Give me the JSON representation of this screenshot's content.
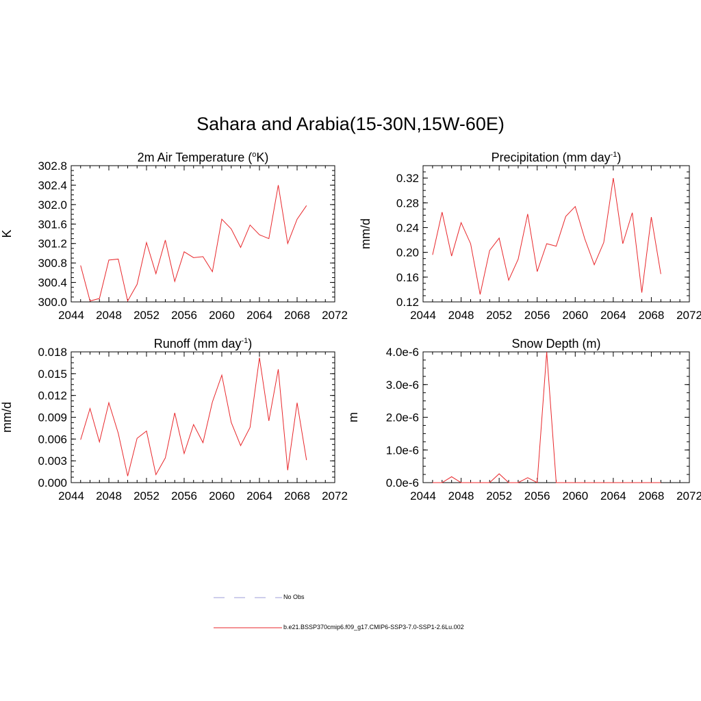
{
  "title": "Sahara and Arabia(15-30N,15W-60E)",
  "legend": {
    "items": [
      {
        "label": "No Obs",
        "color": "#9c9cd8",
        "style": "dashed"
      },
      {
        "label": "b.e21.BSSP370cmip6.f09_g17.CMIP6-SSP3-7.0-SSP1-2.6Lu.002",
        "color": "#e8262a",
        "style": "solid"
      }
    ]
  },
  "chart_data": [
    {
      "type": "line",
      "title": "2m Air Temperature (",
      "title_sup": "o",
      "title_after": "K)",
      "ylabel": "K",
      "xlabel": "",
      "xlim": [
        2044,
        2072
      ],
      "ylim": [
        300.0,
        302.8
      ],
      "xticks": [
        "2044",
        "2048",
        "2052",
        "2056",
        "2060",
        "2064",
        "2068",
        "2072"
      ],
      "yticks": [
        "300.0",
        "300.4",
        "300.8",
        "301.2",
        "301.6",
        "302.0",
        "302.4",
        "302.8"
      ],
      "ytick_values": [
        300.0,
        300.4,
        300.8,
        301.2,
        301.6,
        302.0,
        302.4,
        302.8
      ],
      "grid": false,
      "series": [
        {
          "color": "#e8262a",
          "x": [
            2045,
            2046,
            2047,
            2048,
            2049,
            2050,
            2051,
            2052,
            2053,
            2054,
            2055,
            2056,
            2057,
            2058,
            2059,
            2060,
            2061,
            2062,
            2063,
            2064,
            2065,
            2066,
            2067,
            2068,
            2069
          ],
          "values": [
            300.75,
            300.02,
            300.07,
            300.86,
            300.88,
            300.02,
            300.36,
            301.22,
            300.58,
            301.27,
            300.42,
            301.03,
            300.91,
            300.93,
            300.62,
            301.7,
            301.5,
            301.12,
            301.58,
            301.38,
            301.3,
            302.4,
            301.2,
            301.7,
            301.98
          ]
        }
      ]
    },
    {
      "type": "line",
      "title": "Precipitation (mm day",
      "title_sup": "-1",
      "title_after": ")",
      "ylabel": "mm/d",
      "xlabel": "",
      "xlim": [
        2044,
        2072
      ],
      "ylim": [
        0.12,
        0.34
      ],
      "xticks": [
        "2044",
        "2048",
        "2052",
        "2056",
        "2060",
        "2064",
        "2068",
        "2072"
      ],
      "yticks": [
        "0.12",
        "0.16",
        "0.20",
        "0.24",
        "0.28",
        "0.32"
      ],
      "ytick_values": [
        0.12,
        0.16,
        0.2,
        0.24,
        0.28,
        0.32
      ],
      "grid": false,
      "series": [
        {
          "color": "#e8262a",
          "x": [
            2045,
            2046,
            2047,
            2048,
            2049,
            2050,
            2051,
            2052,
            2053,
            2054,
            2055,
            2056,
            2057,
            2058,
            2059,
            2060,
            2061,
            2062,
            2063,
            2064,
            2065,
            2066,
            2067,
            2068,
            2069
          ],
          "values": [
            0.196,
            0.265,
            0.194,
            0.248,
            0.214,
            0.132,
            0.203,
            0.223,
            0.155,
            0.189,
            0.262,
            0.169,
            0.214,
            0.21,
            0.258,
            0.274,
            0.222,
            0.18,
            0.216,
            0.32,
            0.214,
            0.264,
            0.135,
            0.257,
            0.165
          ]
        }
      ]
    },
    {
      "type": "line",
      "title": "Runoff (mm day",
      "title_sup": "-1",
      "title_after": ")",
      "ylabel": "mm/d",
      "xlabel": "",
      "xlim": [
        2044,
        2072
      ],
      "ylim": [
        0.0,
        0.018
      ],
      "xticks": [
        "2044",
        "2048",
        "2052",
        "2056",
        "2060",
        "2064",
        "2068",
        "2072"
      ],
      "yticks": [
        "0.000",
        "0.003",
        "0.006",
        "0.009",
        "0.012",
        "0.015",
        "0.018"
      ],
      "ytick_values": [
        0.0,
        0.003,
        0.006,
        0.009,
        0.012,
        0.015,
        0.018
      ],
      "grid": false,
      "series": [
        {
          "color": "#e8262a",
          "x": [
            2045,
            2046,
            2047,
            2048,
            2049,
            2050,
            2051,
            2052,
            2053,
            2054,
            2055,
            2056,
            2057,
            2058,
            2059,
            2060,
            2061,
            2062,
            2063,
            2064,
            2065,
            2066,
            2067,
            2068,
            2069
          ],
          "values": [
            0.0059,
            0.0102,
            0.0056,
            0.011,
            0.0068,
            0.0009,
            0.0061,
            0.0071,
            0.0011,
            0.0034,
            0.0096,
            0.004,
            0.008,
            0.0055,
            0.0111,
            0.0148,
            0.0083,
            0.0051,
            0.0076,
            0.0172,
            0.0085,
            0.0156,
            0.0017,
            0.011,
            0.0031
          ]
        }
      ]
    },
    {
      "type": "line",
      "title": "Snow Depth (m)",
      "title_sup": "",
      "title_after": "",
      "ylabel": "m",
      "xlabel": "",
      "xlim": [
        2044,
        2072
      ],
      "ylim": [
        0.0,
        4e-06
      ],
      "xticks": [
        "2044",
        "2048",
        "2052",
        "2056",
        "2060",
        "2064",
        "2068",
        "2072"
      ],
      "yticks": [
        "0.0e-6",
        "1.0e-6",
        "2.0e-6",
        "3.0e-6",
        "4.0e-6"
      ],
      "ytick_values": [
        0.0,
        1e-06,
        2e-06,
        3e-06,
        4e-06
      ],
      "grid": false,
      "series": [
        {
          "color": "#e8262a",
          "x": [
            2045,
            2046,
            2047,
            2048,
            2049,
            2050,
            2051,
            2052,
            2053,
            2054,
            2055,
            2056,
            2057,
            2058,
            2059,
            2060,
            2061,
            2062,
            2063,
            2064,
            2065,
            2066,
            2067,
            2068,
            2069
          ],
          "values": [
            0.0,
            0.0,
            1.8e-07,
            0.0,
            0.0,
            0.0,
            0.0,
            2.7e-07,
            0.0,
            0.0,
            1.5e-07,
            0.0,
            4e-06,
            0.0,
            0.0,
            0.0,
            0.0,
            0.0,
            0.0,
            0.0,
            0.0,
            0.0,
            0.0,
            0.0,
            0.0
          ]
        }
      ]
    }
  ]
}
